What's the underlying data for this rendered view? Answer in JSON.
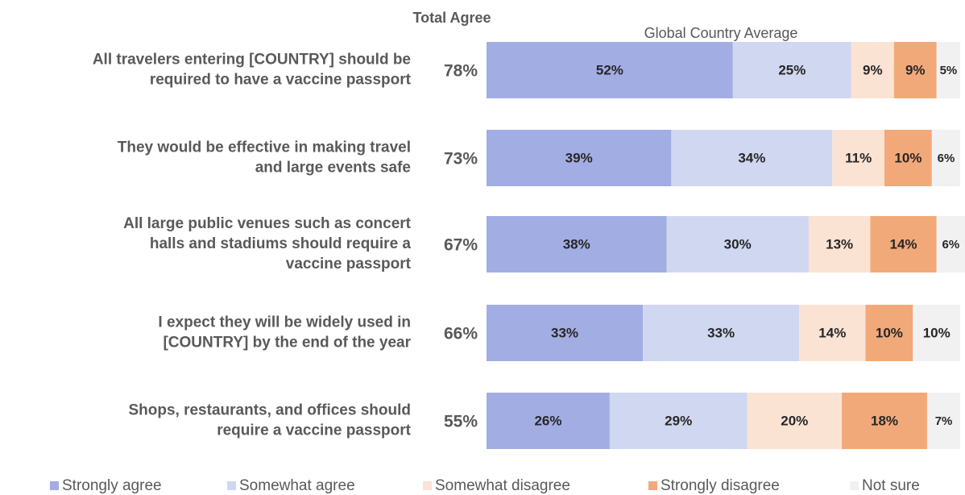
{
  "chart_data": {
    "type": "stacked-bar-horizontal",
    "subtitle": "Global Country Average",
    "total_agree": {
      "title": "Total Agree",
      "values": [
        78,
        73,
        67,
        66,
        55
      ],
      "value_labels": [
        "78%",
        "73%",
        "67%",
        "66%",
        "55%"
      ]
    },
    "categories": [
      "All travelers entering [COUNTRY] should be\nrequired to have a vaccine passport",
      "They would be effective in making travel\nand large events safe",
      "All large public venues such as concert\nhalls and stadiums should require a\nvaccine passport",
      "I expect they will be widely used in\n[COUNTRY] by the end of the year",
      "Shops, restaurants, and offices should\nrequire a vaccine passport"
    ],
    "series": [
      {
        "name": "Strongly agree",
        "color": "#a2aee3",
        "values": [
          52,
          39,
          38,
          33,
          26
        ],
        "value_labels": [
          "52%",
          "39%",
          "38%",
          "33%",
          "26%"
        ]
      },
      {
        "name": "Somewhat agree",
        "color": "#d0d7f1",
        "values": [
          25,
          34,
          30,
          33,
          29
        ],
        "value_labels": [
          "25%",
          "34%",
          "30%",
          "33%",
          "29%"
        ]
      },
      {
        "name": "Somewhat disagree",
        "color": "#fbe3d4",
        "values": [
          9,
          11,
          13,
          14,
          20
        ],
        "value_labels": [
          "9%",
          "11%",
          "13%",
          "14%",
          "20%"
        ]
      },
      {
        "name": "Strongly disagree",
        "color": "#f2a97a",
        "values": [
          9,
          10,
          14,
          10,
          18
        ],
        "value_labels": [
          "9%",
          "10%",
          "14%",
          "10%",
          "18%"
        ]
      },
      {
        "name": "Not sure",
        "color": "#f1f1f1",
        "values": [
          5,
          6,
          6,
          10,
          7
        ],
        "value_labels": [
          "5%",
          "6%",
          "6%",
          "10%",
          "7%"
        ]
      }
    ],
    "legend": "bottom"
  }
}
